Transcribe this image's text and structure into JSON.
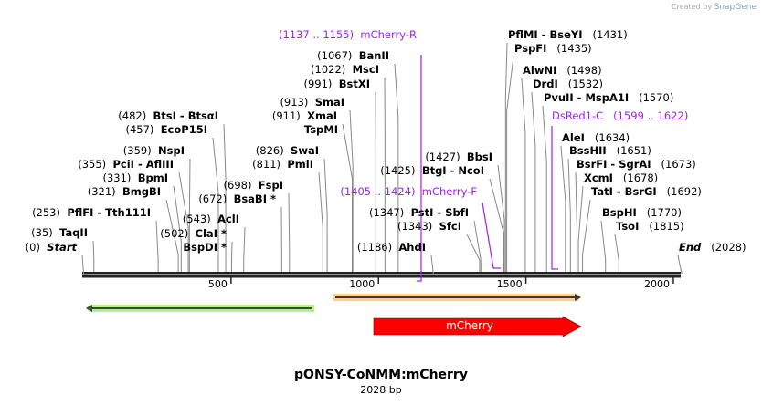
{
  "header": {
    "credit_prefix": "Created by",
    "credit_brand": "SnapGene"
  },
  "plasmid": {
    "name": "pONSY-CoNMM:mCherry",
    "length_label": "2028 bp",
    "length": 2028
  },
  "ruler": {
    "ticks": [
      "500",
      "1000",
      "1500",
      "2000"
    ]
  },
  "sites": [
    {
      "pos": "(0)",
      "name": "Start",
      "bp": 0,
      "italic": true
    },
    {
      "pos": "(35)",
      "name": "TaqII",
      "bp": 35
    },
    {
      "pos": "(253)",
      "name": "PflFI  - Tth111I",
      "bp": 253
    },
    {
      "pos": "(321)",
      "name": "BmgBI",
      "bp": 321
    },
    {
      "pos": "(331)",
      "name": "BpmI",
      "bp": 331
    },
    {
      "pos": "(355)",
      "name": "PciI  - AflIII",
      "bp": 355
    },
    {
      "pos": "(359)",
      "name": "NspI",
      "bp": 359
    },
    {
      "pos": "(457)",
      "name": "EcoP15I",
      "bp": 457
    },
    {
      "pos": "(482)",
      "name": "BtsI  - BtsαI",
      "bp": 482
    },
    {
      "pos": "(502)",
      "name": "ClaI *",
      "bp": 502
    },
    {
      "pos": "",
      "name": "BspDI *",
      "bp": 502
    },
    {
      "pos": "(543)",
      "name": "AclI",
      "bp": 543
    },
    {
      "pos": "(672)",
      "name": "BsaBI *",
      "bp": 672
    },
    {
      "pos": "(698)",
      "name": "FspI",
      "bp": 698
    },
    {
      "pos": "(811)",
      "name": "PmlI",
      "bp": 811
    },
    {
      "pos": "(826)",
      "name": "SwaI",
      "bp": 826
    },
    {
      "pos": "(913)",
      "name": "SmaI",
      "bp": 913
    },
    {
      "pos": "(911)",
      "name": "XmaI",
      "bp": 911
    },
    {
      "pos": "",
      "name": "TspMI",
      "bp": 911
    },
    {
      "pos": "(991)",
      "name": "BstXI",
      "bp": 991
    },
    {
      "pos": "(1022)",
      "name": "MscI",
      "bp": 1022
    },
    {
      "pos": "(1067)",
      "name": "BanII",
      "bp": 1067
    },
    {
      "pos": "(1186)",
      "name": "AhdI",
      "bp": 1186
    },
    {
      "pos": "(1343)",
      "name": "SfcI",
      "bp": 1343
    },
    {
      "pos": "(1347)",
      "name": "PstI  - SbfI",
      "bp": 1347
    },
    {
      "pos": "(1425)",
      "name": "BtgI  - NcoI",
      "bp": 1425
    },
    {
      "pos": "(1427)",
      "name": "BbsI",
      "bp": 1427
    },
    {
      "pos": "(1431)",
      "name": "PflMI  - BseYI",
      "bp": 1431
    },
    {
      "pos": "(1435)",
      "name": "PspFI",
      "bp": 1435
    },
    {
      "pos": "(1498)",
      "name": "AlwNI",
      "bp": 1498
    },
    {
      "pos": "(1532)",
      "name": "DrdI",
      "bp": 1532
    },
    {
      "pos": "(1570)",
      "name": "PvuII  - MspA1I",
      "bp": 1570
    },
    {
      "pos": "(1634)",
      "name": "AleI",
      "bp": 1634
    },
    {
      "pos": "(1651)",
      "name": "BssHII",
      "bp": 1651
    },
    {
      "pos": "(1673)",
      "name": "BsrFI  - SgrAI",
      "bp": 1673
    },
    {
      "pos": "(1678)",
      "name": "XcmI",
      "bp": 1678
    },
    {
      "pos": "(1692)",
      "name": "TatI  - BsrGI",
      "bp": 1692
    },
    {
      "pos": "(1770)",
      "name": "BspHI",
      "bp": 1770
    },
    {
      "pos": "(1815)",
      "name": "TsoI",
      "bp": 1815
    },
    {
      "pos": "(2028)",
      "name": "End",
      "bp": 2028,
      "italic": true
    }
  ],
  "primers": [
    {
      "pos": "(1137 .. 1155)",
      "name": "mCherry-R",
      "start": 1137,
      "end": 1155
    },
    {
      "pos": "(1405 .. 1424)",
      "name": "mCherry-F",
      "start": 1405,
      "end": 1424
    },
    {
      "pos": "(1599 .. 1622)",
      "name": "DsRed1-C",
      "start": 1599,
      "end": 1622
    }
  ],
  "features": [
    {
      "name": "",
      "color": "#b5f08a",
      "direction": "reverse"
    },
    {
      "name": "",
      "color": "#fcd088",
      "direction": "forward"
    },
    {
      "name": "mCherry",
      "color": "#ff0000",
      "direction": "forward"
    }
  ],
  "colors": {
    "primer": "#a020f0",
    "line": "#888888"
  }
}
